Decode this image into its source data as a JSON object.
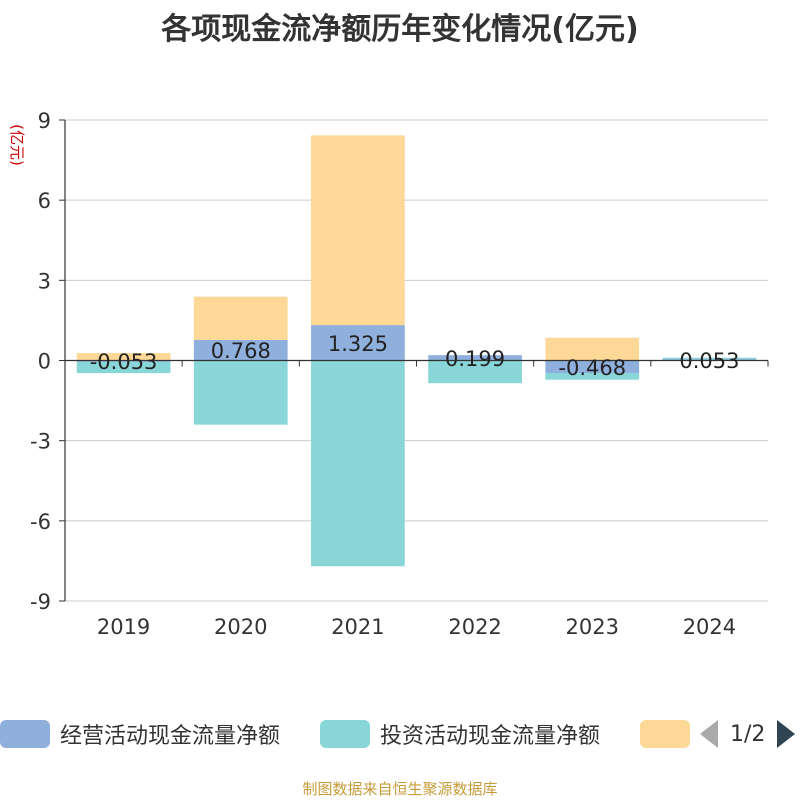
{
  "title": "各项现金流净额历年变化情况(亿元)",
  "source_note": "制图数据来自恒生聚源数据库",
  "legend": {
    "items": [
      {
        "label": "经营活动现金流量净额",
        "color": "#8fb0dc"
      },
      {
        "label": "投资活动现金流量净额",
        "color": "#88d6d8"
      },
      {
        "label": "",
        "color": "#fdd896"
      }
    ],
    "page_label": "1/2"
  },
  "chart_data": {
    "type": "bar",
    "stacked": true,
    "categories": [
      "2019",
      "2020",
      "2021",
      "2022",
      "2023",
      "2024"
    ],
    "ylabel": "(亿元)",
    "ylim": [
      -9,
      9
    ],
    "yticks": [
      9,
      6,
      3,
      0,
      -3,
      -6,
      -9
    ],
    "grid": true,
    "legend_position": "bottom",
    "series": [
      {
        "name": "经营活动现金流量净额",
        "color": "#8fb0dc",
        "values": [
          -0.053,
          0.768,
          1.325,
          0.199,
          -0.468,
          0.053
        ],
        "labels": [
          "-0.053",
          "0.768",
          "1.325",
          "0.199",
          "-0.468",
          "0.053"
        ]
      },
      {
        "name": "投资活动现金流量净额",
        "color": "#88d6d8",
        "values": [
          -0.42,
          -2.4,
          -7.7,
          -0.85,
          -0.25,
          0.05
        ]
      },
      {
        "name": "",
        "color": "#fdd896",
        "values": [
          0.28,
          1.62,
          7.1,
          0.0,
          0.85,
          0.0
        ]
      }
    ]
  }
}
